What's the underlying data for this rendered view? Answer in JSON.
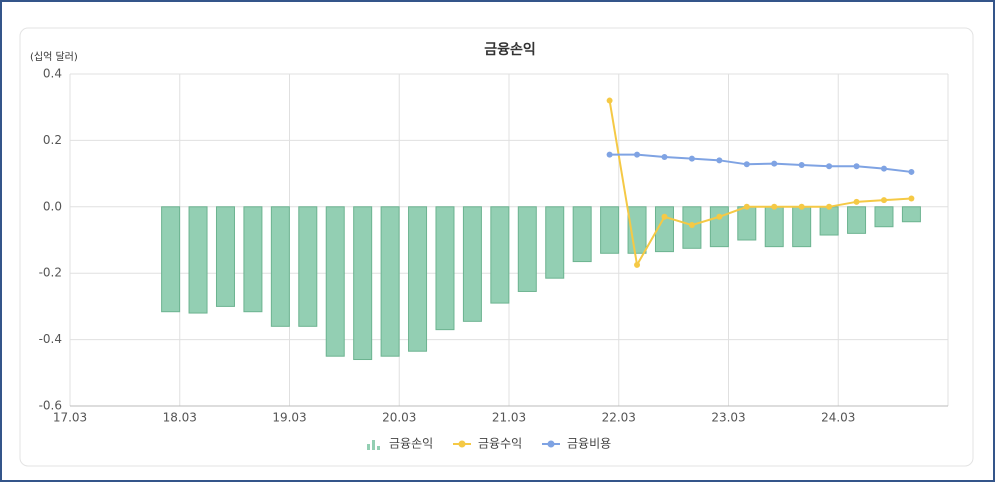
{
  "chart_data": {
    "type": "bar-line",
    "title": "금융손익",
    "y_label": "(십억 달러)",
    "x": [
      "18.02",
      "18.05",
      "18.08",
      "18.11",
      "19.02",
      "19.05",
      "19.08",
      "19.11",
      "20.02",
      "20.05",
      "20.08",
      "20.11",
      "21.02",
      "21.05",
      "21.08",
      "21.11",
      "22.02",
      "22.05",
      "22.08",
      "22.11",
      "23.02",
      "23.05",
      "23.08",
      "23.11",
      "24.02",
      "24.05",
      "24.08",
      "24.11"
    ],
    "series": [
      {
        "name": "금융손익",
        "kind": "bar",
        "color": "#93cfb3",
        "values": [
          -0.316,
          -0.32,
          -0.3,
          -0.316,
          -0.36,
          -0.36,
          -0.45,
          -0.46,
          -0.45,
          -0.435,
          -0.37,
          -0.345,
          -0.29,
          -0.255,
          -0.215,
          -0.165,
          -0.14,
          -0.14,
          -0.135,
          -0.125,
          -0.12,
          -0.1,
          -0.12,
          -0.12,
          -0.085,
          -0.08,
          -0.06,
          -0.045
        ]
      },
      {
        "name": "금융수익",
        "kind": "line",
        "color": "#f5c945",
        "values": [
          null,
          null,
          null,
          null,
          null,
          null,
          null,
          null,
          null,
          null,
          null,
          null,
          null,
          null,
          null,
          null,
          0.32,
          -0.175,
          -0.03,
          -0.055,
          -0.03,
          0.0,
          0.0,
          0.0,
          0.0,
          0.015,
          0.02,
          0.025
        ]
      },
      {
        "name": "금융비용",
        "kind": "line",
        "color": "#7f a3e3",
        "values": [
          null,
          null,
          null,
          null,
          null,
          null,
          null,
          null,
          null,
          null,
          null,
          null,
          null,
          null,
          null,
          null,
          0.157,
          0.157,
          0.15,
          0.145,
          0.14,
          0.128,
          0.13,
          0.126,
          0.122,
          0.122,
          0.115,
          0.105
        ]
      }
    ],
    "xlim": [
      "17.03",
      "25.03"
    ],
    "xticks": [
      "17.03",
      "18.03",
      "19.03",
      "20.03",
      "21.03",
      "22.03",
      "23.03",
      "24.03"
    ],
    "ylim": [
      -0.6,
      0.4
    ],
    "yticks": [
      {
        "value": -0.6,
        "label": "-0.6"
      },
      {
        "value": -0.4,
        "label": "-0.4"
      },
      {
        "value": -0.2,
        "label": "-0.2"
      },
      {
        "value": 0,
        "label": "0.0"
      },
      {
        "value": 0.2,
        "label": "0.2"
      },
      {
        "value": 0.4,
        "label": "0.4"
      }
    ],
    "grid": true,
    "legend": "bottom"
  }
}
